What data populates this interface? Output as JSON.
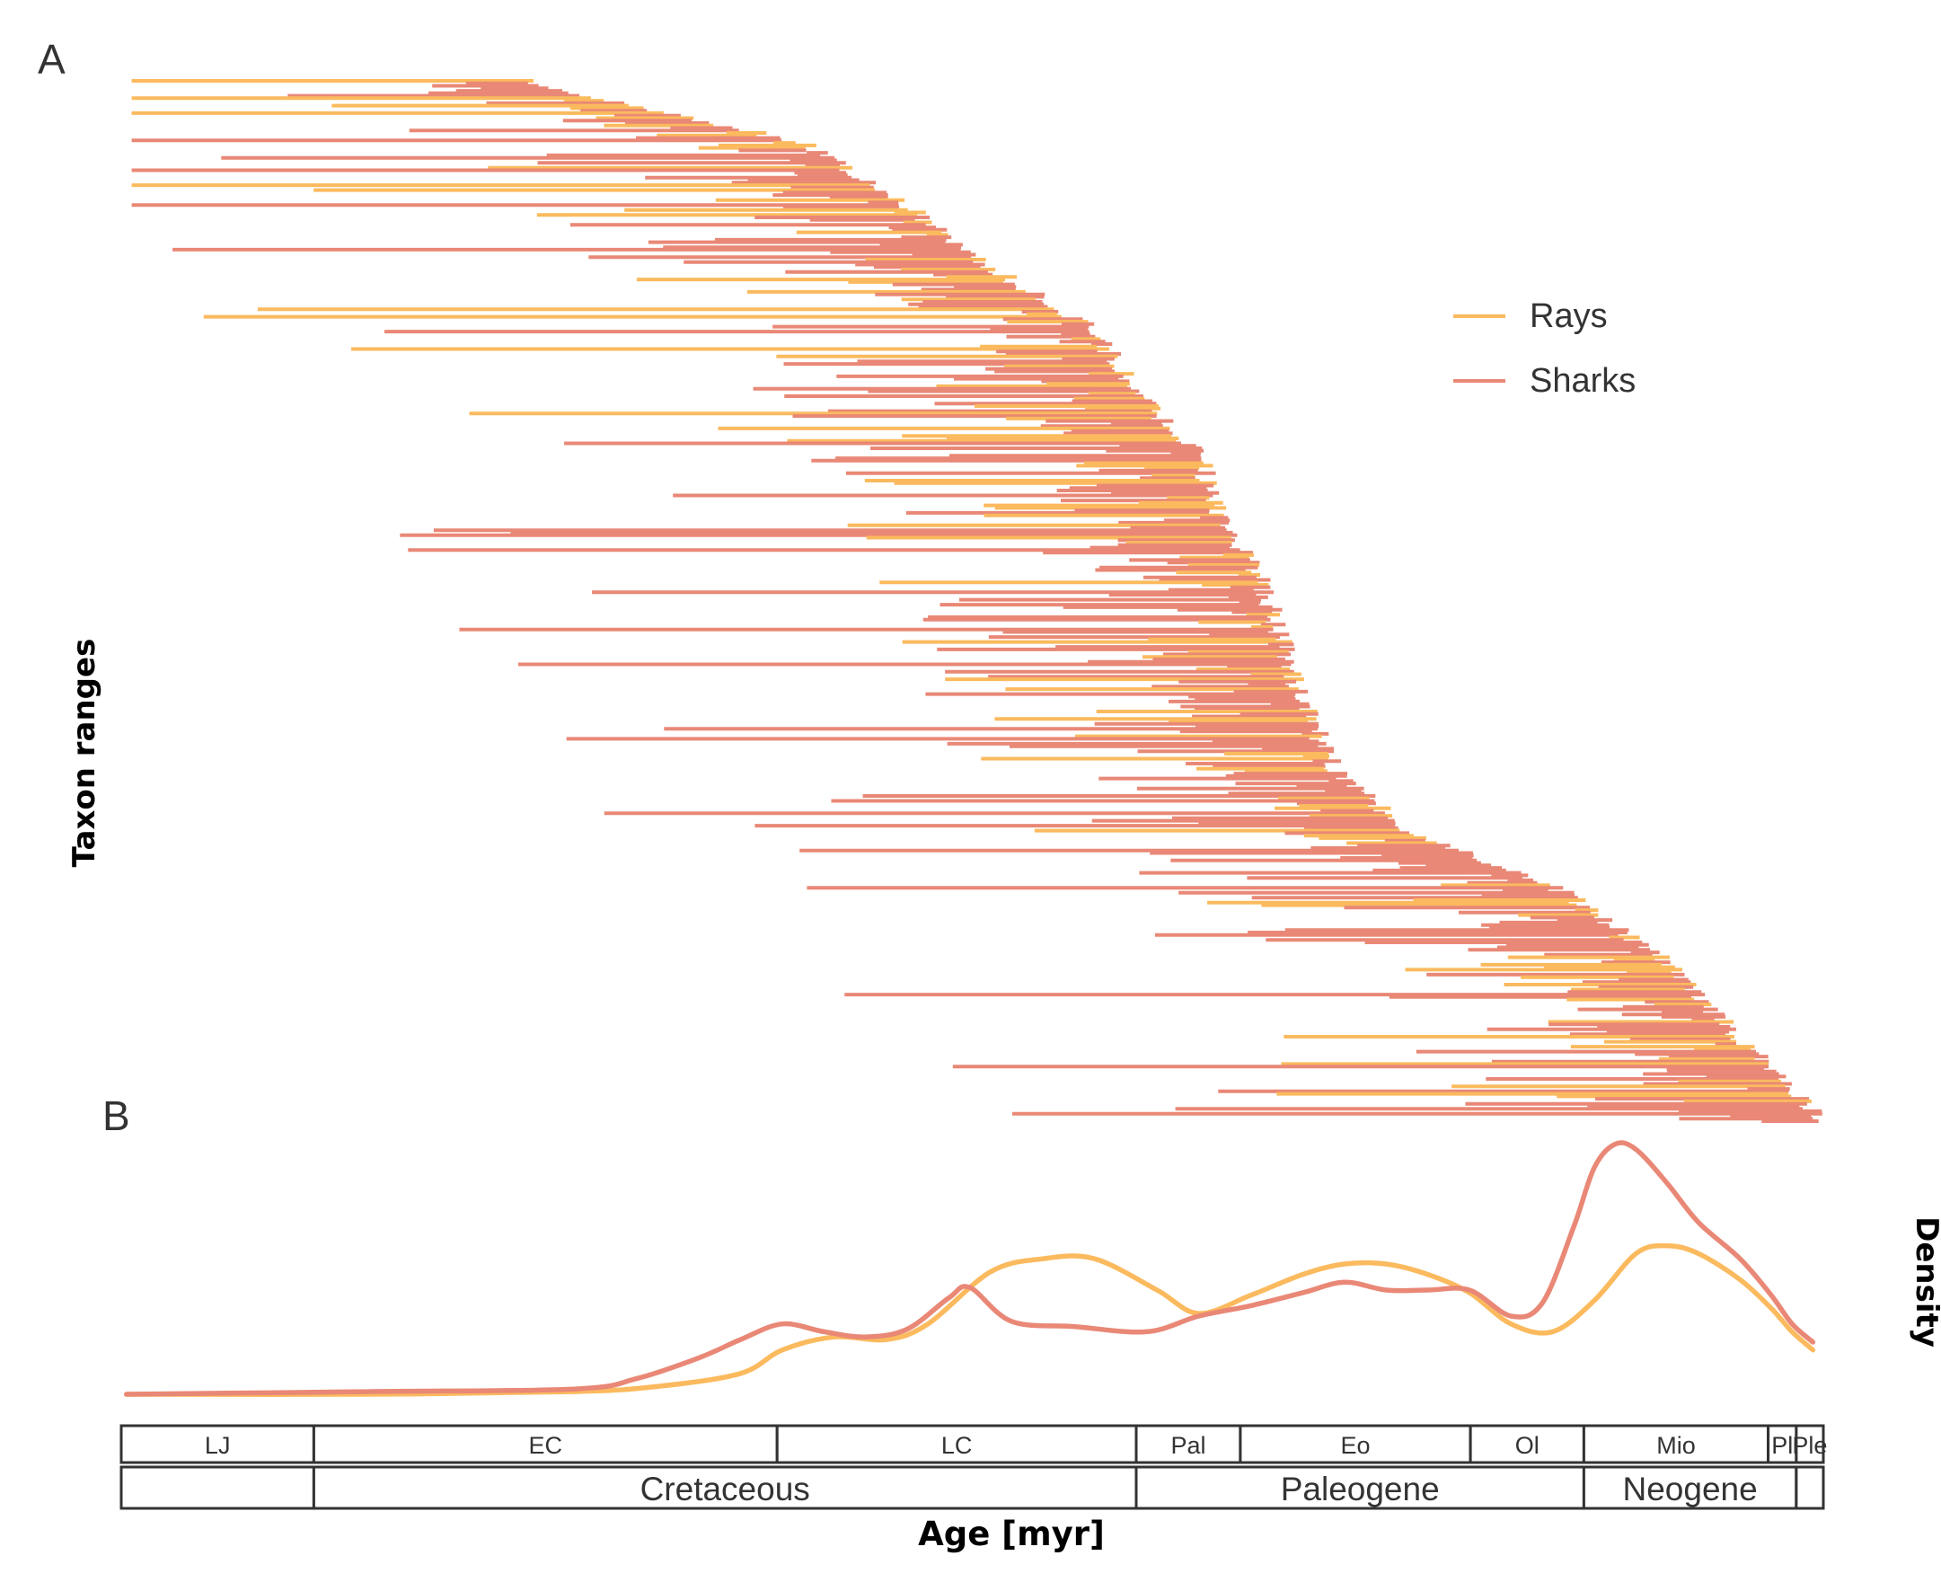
{
  "panels": {
    "a_label": "A",
    "b_label": "B"
  },
  "colors": {
    "rays": "#FBBA5E",
    "sharks": "#E98876",
    "box": "#333333"
  },
  "chart_data": [
    {
      "panel": "A",
      "type": "range",
      "title": "",
      "ylabel": "Taxon ranges",
      "xlabel": "",
      "x_unit": "myr before present",
      "xlim": [
        163.5,
        0
      ],
      "grid": false,
      "legend": {
        "placement": "top-right",
        "entries": [
          "Rays",
          "Sharks"
        ]
      },
      "series": [
        {
          "name": "Rays",
          "color_key": "rays"
        },
        {
          "name": "Sharks",
          "color_key": "sharks"
        }
      ],
      "front_profile": [
        [
          0.0,
          125
        ],
        [
          0.06,
          98
        ],
        [
          0.12,
          88
        ],
        [
          0.18,
          80
        ],
        [
          0.24,
          70
        ],
        [
          0.3,
          66
        ],
        [
          0.36,
          60
        ],
        [
          0.42,
          58
        ],
        [
          0.48,
          54
        ],
        [
          0.54,
          52
        ],
        [
          0.6,
          50
        ],
        [
          0.66,
          47
        ],
        [
          0.72,
          40
        ],
        [
          0.78,
          25
        ],
        [
          0.84,
          16
        ],
        [
          0.9,
          10
        ],
        [
          0.94,
          6
        ],
        [
          1.0,
          0
        ]
      ],
      "taxa_shown": 420
    },
    {
      "panel": "B",
      "type": "line",
      "title": "",
      "xlabel": "Age [myr]",
      "ylabel": "Density",
      "xlim": [
        163.5,
        0
      ],
      "grid": false,
      "series": [
        {
          "name": "Rays",
          "color_key": "rays",
          "x": [
            163,
            140,
            120,
            112,
            104,
            100,
            95,
            90,
            86,
            80,
            75,
            70,
            64,
            60,
            55,
            50,
            46,
            42,
            38,
            34,
            30,
            26,
            22,
            18,
            15,
            12,
            8,
            5,
            3,
            1
          ],
          "y": [
            0.0,
            0.0,
            0.01,
            0.03,
            0.08,
            0.17,
            0.22,
            0.21,
            0.27,
            0.47,
            0.52,
            0.52,
            0.4,
            0.31,
            0.38,
            0.46,
            0.5,
            0.5,
            0.46,
            0.39,
            0.27,
            0.24,
            0.36,
            0.54,
            0.57,
            0.54,
            0.44,
            0.33,
            0.24,
            0.17
          ]
        },
        {
          "name": "Sharks",
          "color_key": "sharks",
          "x": [
            163,
            140,
            120,
            114,
            108,
            104,
            100,
            96,
            92,
            88,
            84,
            82,
            78,
            72,
            65,
            60,
            55,
            50,
            46,
            42,
            38,
            34,
            30,
            27,
            24,
            22,
            20,
            18,
            15,
            12,
            8,
            5,
            3,
            1
          ],
          "y": [
            0.0,
            0.01,
            0.02,
            0.06,
            0.14,
            0.21,
            0.27,
            0.24,
            0.22,
            0.25,
            0.37,
            0.41,
            0.28,
            0.26,
            0.24,
            0.3,
            0.34,
            0.39,
            0.43,
            0.4,
            0.4,
            0.4,
            0.3,
            0.35,
            0.64,
            0.87,
            0.96,
            0.94,
            0.81,
            0.66,
            0.52,
            0.38,
            0.27,
            0.2
          ]
        }
      ]
    }
  ],
  "timescale": {
    "epochs": [
      {
        "label": "LJ",
        "start": 163.5,
        "end": 145.0
      },
      {
        "label": "EC",
        "start": 145.0,
        "end": 100.5
      },
      {
        "label": "LC",
        "start": 100.5,
        "end": 66.0
      },
      {
        "label": "Pal",
        "start": 66.0,
        "end": 56.0
      },
      {
        "label": "Eo",
        "start": 56.0,
        "end": 33.9
      },
      {
        "label": "Ol",
        "start": 33.9,
        "end": 23.0
      },
      {
        "label": "Mio",
        "start": 23.0,
        "end": 5.3
      },
      {
        "label": "Pl",
        "start": 5.3,
        "end": 2.6
      },
      {
        "label": "Ple",
        "start": 2.6,
        "end": 0.0
      }
    ],
    "periods": [
      {
        "label": "",
        "start": 163.5,
        "end": 145.0
      },
      {
        "label": "Cretaceous",
        "start": 145.0,
        "end": 66.0
      },
      {
        "label": "Paleogene",
        "start": 66.0,
        "end": 23.0
      },
      {
        "label": "Neogene",
        "start": 23.0,
        "end": 2.6
      },
      {
        "label": "",
        "start": 2.6,
        "end": 0.0
      }
    ]
  }
}
